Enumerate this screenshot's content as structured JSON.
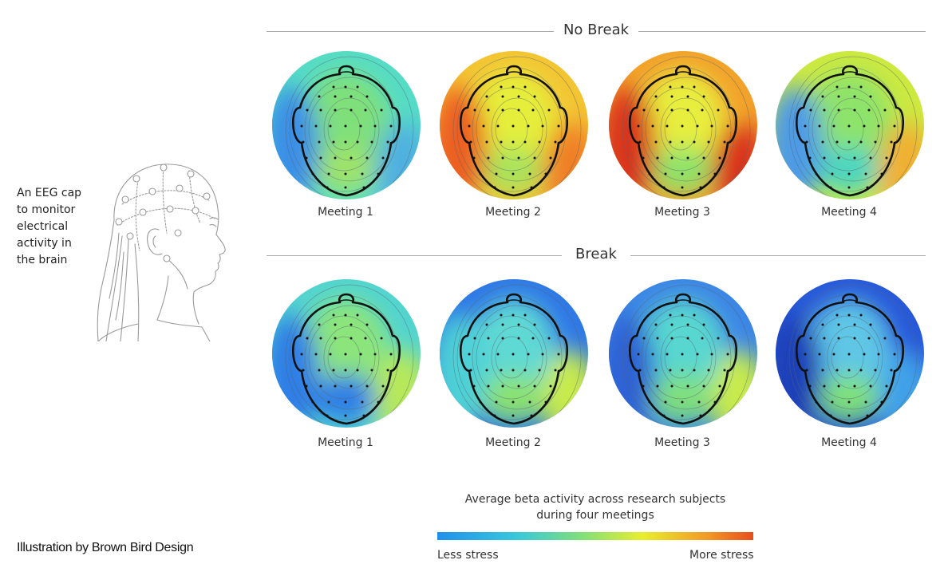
{
  "caption": {
    "lines": [
      "An EEG cap",
      "to monitor",
      "electrical",
      "activity in",
      "the brain"
    ]
  },
  "credit": "Illustration by Brown Bird Design",
  "colors": {
    "low": "#1e90ec",
    "high": "#e94d1d"
  },
  "sections": [
    {
      "title": "No Break",
      "maps": [
        {
          "label": "Meeting 1",
          "bg": "#55dcc6",
          "blobs": [
            {
              "c": "#7fe07a"
            },
            {
              "c": "#9ee36a"
            },
            {
              "c": "#3a8fe6"
            },
            {
              "c": "#4fb0e0"
            }
          ]
        },
        {
          "label": "Meeting 2",
          "bg": "#f3c433",
          "blobs": [
            {
              "c": "#e5ef3a"
            },
            {
              "c": "#a9e35b"
            },
            {
              "c": "#ec5e22"
            },
            {
              "c": "#f07f27"
            }
          ]
        },
        {
          "label": "Meeting 3",
          "bg": "#f2a22b",
          "blobs": [
            {
              "c": "#e8ee3c"
            },
            {
              "c": "#8ee36a"
            },
            {
              "c": "#d9361c"
            },
            {
              "c": "#d9361c"
            }
          ]
        },
        {
          "label": "Meeting 4",
          "bg": "#cde93f",
          "blobs": [
            {
              "c": "#8ee36a"
            },
            {
              "c": "#4bd6c0"
            },
            {
              "c": "#4e9ae6"
            },
            {
              "c": "#f0b031"
            }
          ]
        }
      ]
    },
    {
      "title": "Break",
      "maps": [
        {
          "label": "Meeting 1",
          "bg": "#52d4cf",
          "blobs": [
            {
              "c": "#8ce57a"
            },
            {
              "c": "#2e7ee6"
            },
            {
              "c": "#2e7ee6"
            },
            {
              "c": "#b7e85a"
            }
          ]
        },
        {
          "label": "Meeting 2",
          "bg": "#2f78e6",
          "blobs": [
            {
              "c": "#5fd9d4"
            },
            {
              "c": "#8be26f"
            },
            {
              "c": "#4ed0d6"
            },
            {
              "c": "#c8ea4c"
            }
          ]
        },
        {
          "label": "Meeting 3",
          "bg": "#3c86e5",
          "blobs": [
            {
              "c": "#58d7d0"
            },
            {
              "c": "#7fe07a"
            },
            {
              "c": "#2e62d4"
            },
            {
              "c": "#c8ea4c"
            }
          ]
        },
        {
          "label": "Meeting 4",
          "bg": "#2758d8",
          "blobs": [
            {
              "c": "#5fc6e6"
            },
            {
              "c": "#7fe07a"
            },
            {
              "c": "#1a3fb8"
            },
            {
              "c": "#3fa0e8"
            }
          ]
        }
      ]
    }
  ],
  "legend": {
    "title_line1": "Average beta activity across research subjects",
    "title_line2": "during four meetings",
    "low_label": "Less stress",
    "high_label": "More stress"
  }
}
